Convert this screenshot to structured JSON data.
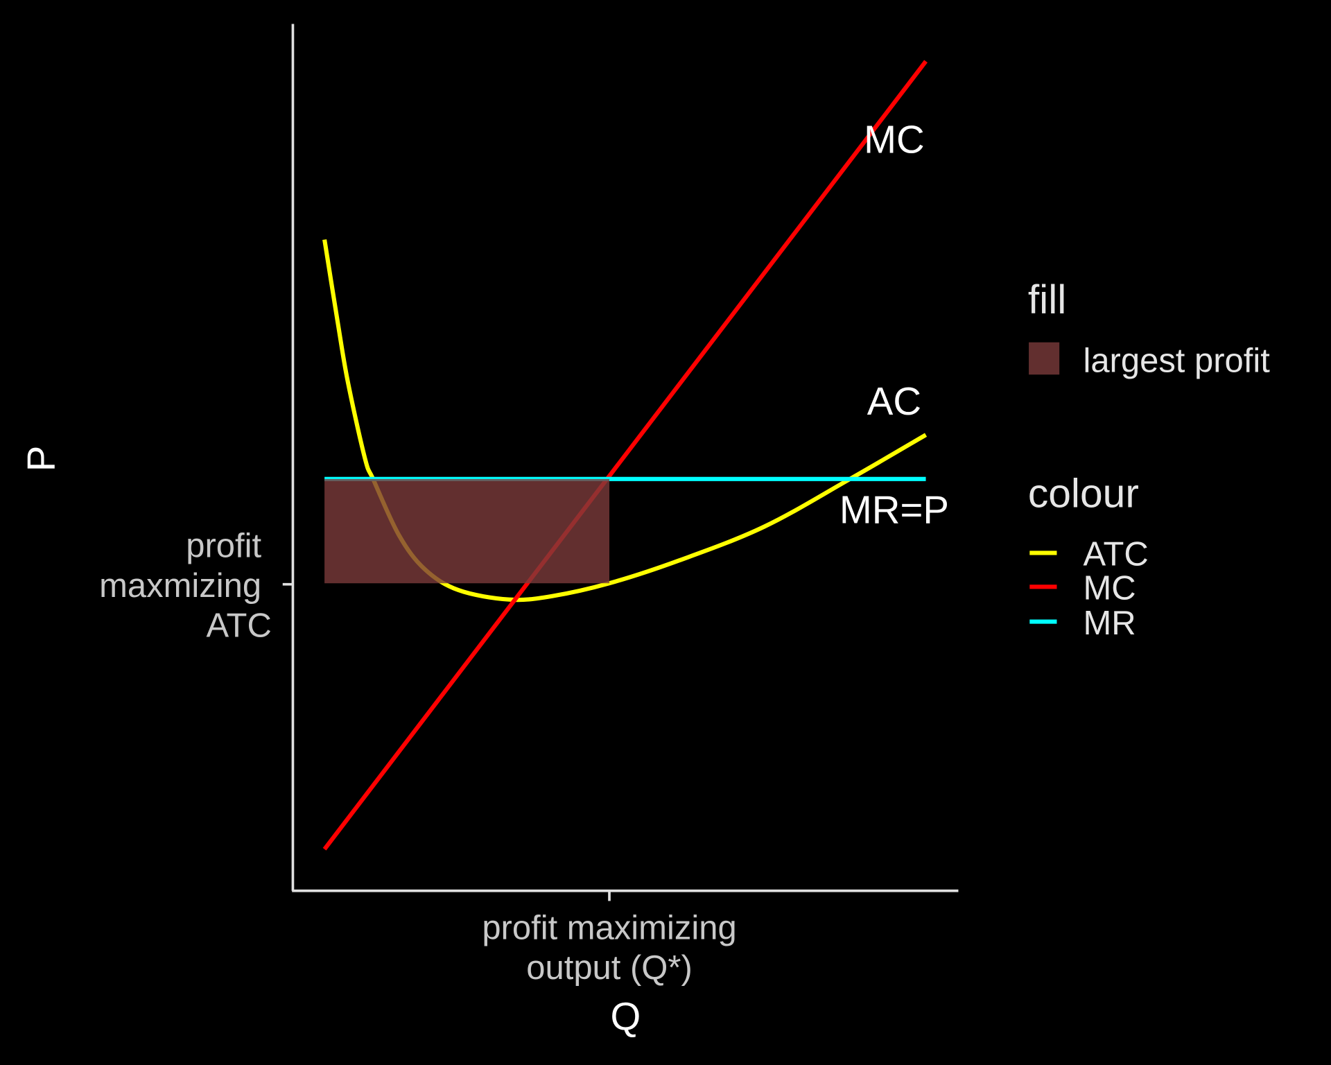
{
  "chart_data": {
    "type": "line",
    "xlabel": "Q",
    "ylabel": "P",
    "xlim": [
      0,
      21
    ],
    "ylim": [
      0,
      25.5
    ],
    "grid": false,
    "x_ticks": [
      {
        "value": 10,
        "label": [
          "profit maximizing",
          "output (Q*)"
        ]
      }
    ],
    "y_ticks": [
      {
        "value": 9.0,
        "label": [
          "profit",
          "maxmizing",
          "ATC"
        ]
      }
    ],
    "series": [
      {
        "name": "ATC",
        "color": "#ffff00",
        "points": [
          [
            1,
            19.15
          ],
          [
            1.42,
            16.7
          ],
          [
            1.74,
            14.95
          ],
          [
            2.28,
            12.7
          ],
          [
            2.55,
            12.07
          ],
          [
            3.35,
            10.45
          ],
          [
            4.16,
            9.45
          ],
          [
            5.23,
            8.83
          ],
          [
            6.84,
            8.55
          ],
          [
            8.18,
            8.65
          ],
          [
            10,
            9.03
          ],
          [
            12.2,
            9.7
          ],
          [
            14.9,
            10.7
          ],
          [
            17.6,
            12.1
          ],
          [
            20,
            13.4
          ]
        ]
      },
      {
        "name": "MC",
        "color": "#ff0000",
        "points": [
          [
            1,
            1.2
          ],
          [
            20,
            24.4
          ]
        ]
      },
      {
        "name": "MR",
        "color": "#00ffff",
        "points": [
          [
            1,
            12.1
          ],
          [
            20,
            12.1
          ]
        ]
      }
    ],
    "rect": {
      "fill_label": "largest profit",
      "color": "#7b3b3b",
      "opacity": 0.8,
      "x": [
        1,
        10
      ],
      "y": [
        9.03,
        12.1
      ]
    },
    "annotations": [
      {
        "text": "MC",
        "x": 19,
        "y": 21.7
      },
      {
        "text": "AC",
        "x": 19,
        "y": 14.0
      },
      {
        "text": "MR=P",
        "x": 19,
        "y": 10.8
      }
    ],
    "legend": {
      "position": "right",
      "fill_title": "fill",
      "fill_items": [
        "largest profit"
      ],
      "colour_title": "colour",
      "colour_items": [
        "ATC",
        "MC",
        "MR"
      ]
    }
  }
}
